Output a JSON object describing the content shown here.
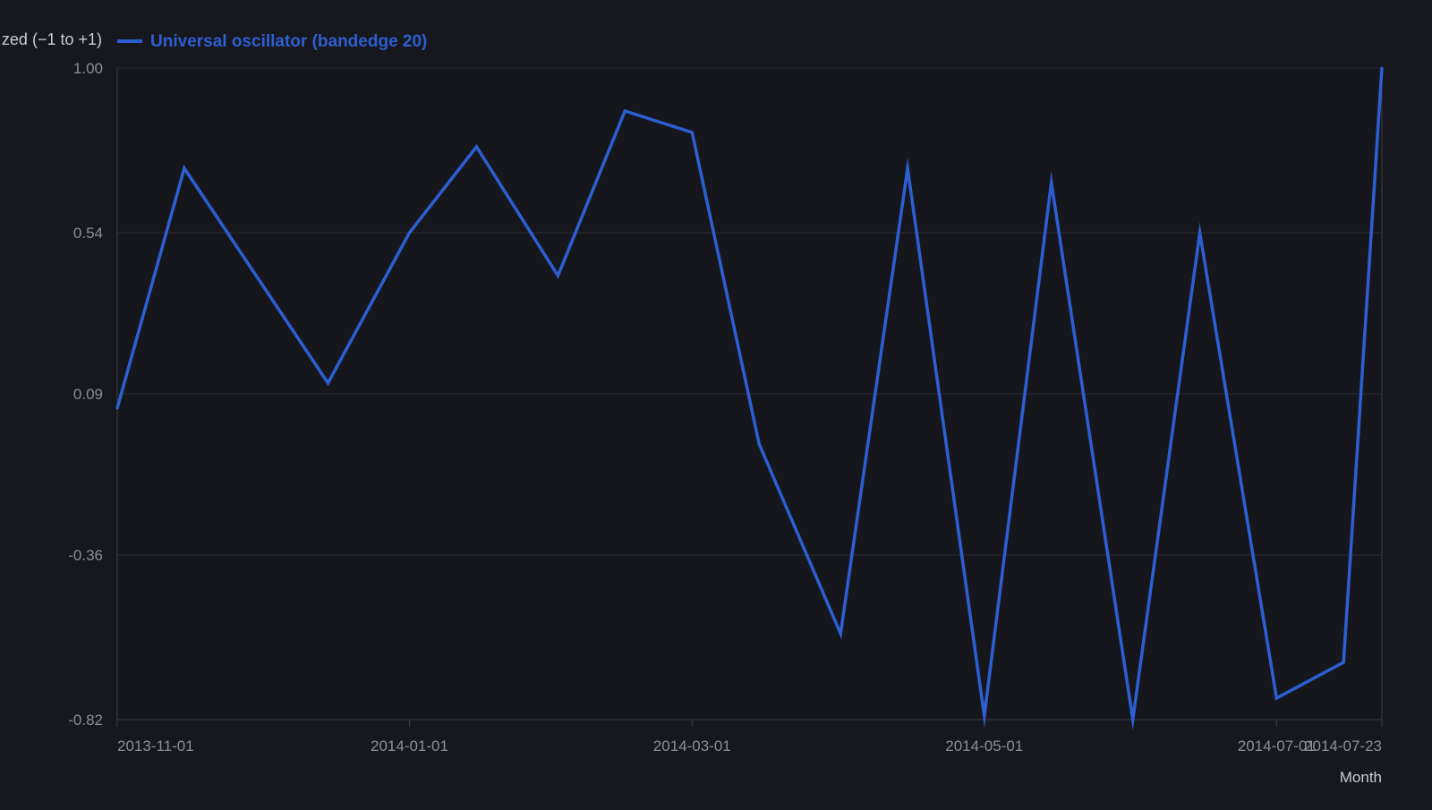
{
  "colors": {
    "background": "#16181d",
    "plot_background": "#15171c",
    "series_line": "#2d5fd3",
    "grid": "#2a2d34",
    "axis": "#3a3e47",
    "tick_text": "#8a8f99",
    "legend_text": "#c9ccd2"
  },
  "chart_data": {
    "type": "line",
    "title": "",
    "xlabel": "Month",
    "ylabel": "",
    "y_scale_caption": "zed (−1 to +1)",
    "grid": true,
    "legend_placement": "top-left",
    "x_domain": [
      "2013-11-01",
      "2014-07-23"
    ],
    "ylim": [
      -0.82,
      1.0
    ],
    "x_ticks": [
      "2013-11-01",
      "2014-01-01",
      "2014-03-01",
      "2014-05-01",
      "2014-07-01",
      "2014-07-23"
    ],
    "x_tick_labels": [
      "2013-11-01",
      "2014-01-01",
      "2014-03-01",
      "2014-05-01",
      "2014-07-01",
      "2014-07-23"
    ],
    "y_ticks": [
      1.0,
      0.54,
      0.09,
      -0.36,
      -0.82
    ],
    "y_tick_labels": [
      "1.00",
      "0.54",
      "0.09",
      "-0.36",
      "-0.82"
    ],
    "series": [
      {
        "name": "Universal oscillator (bandedge 20)",
        "color": "#2d5fd3",
        "x": [
          "2013-11-01",
          "2013-11-15",
          "2013-12-01",
          "2013-12-15",
          "2014-01-01",
          "2014-01-15",
          "2014-02-01",
          "2014-02-15",
          "2014-03-01",
          "2014-03-15",
          "2014-04-01",
          "2014-04-15",
          "2014-05-01",
          "2014-05-15",
          "2014-06-01",
          "2014-06-15",
          "2014-07-01",
          "2014-07-15",
          "2014-07-23"
        ],
        "y": [
          0.05,
          0.72,
          0.4,
          0.12,
          0.54,
          0.78,
          0.42,
          0.88,
          0.82,
          -0.05,
          -0.58,
          0.72,
          -0.81,
          0.68,
          -0.82,
          0.54,
          -0.76,
          -0.66,
          1.0
        ]
      }
    ]
  }
}
